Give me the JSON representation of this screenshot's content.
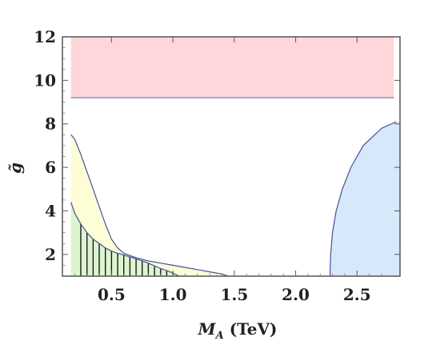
{
  "chart_data": {
    "type": "area",
    "title": "",
    "xlabel": "M_A (TeV)",
    "xlabel_main": "M",
    "xlabel_sub": "A",
    "xlabel_unit": " (TeV)",
    "ylabel": "g̃",
    "xlim": [
      0.1,
      2.85
    ],
    "ylim": [
      1,
      12
    ],
    "grid": false,
    "x_ticks": [
      {
        "value": 0.5,
        "label": "0.5"
      },
      {
        "value": 1.0,
        "label": "1.0"
      },
      {
        "value": 1.5,
        "label": "1.5"
      },
      {
        "value": 2.0,
        "label": "2.0"
      },
      {
        "value": 2.5,
        "label": "2.5"
      }
    ],
    "y_ticks": [
      {
        "value": 2,
        "label": "2"
      },
      {
        "value": 4,
        "label": "4"
      },
      {
        "value": 6,
        "label": "6"
      },
      {
        "value": 8,
        "label": "8"
      },
      {
        "value": 10,
        "label": "10"
      },
      {
        "value": 12,
        "label": "12"
      }
    ],
    "regions": [
      {
        "id": "pink",
        "fill": "#ffd6da",
        "boundary": [
          [
            0.17,
            9.2
          ],
          [
            2.8,
            9.2
          ]
        ],
        "fill_to": "top",
        "edge_color": "#7a7fbf"
      },
      {
        "id": "yellow",
        "fill": "#fdfdd6",
        "boundary": [
          [
            0.17,
            7.5
          ],
          [
            0.2,
            7.3
          ],
          [
            0.25,
            6.6
          ],
          [
            0.3,
            5.8
          ],
          [
            0.35,
            5.0
          ],
          [
            0.4,
            4.2
          ],
          [
            0.45,
            3.4
          ],
          [
            0.5,
            2.7
          ],
          [
            0.55,
            2.3
          ],
          [
            0.6,
            2.05
          ],
          [
            0.7,
            1.85
          ],
          [
            0.8,
            1.7
          ],
          [
            0.9,
            1.6
          ],
          [
            1.0,
            1.5
          ],
          [
            1.1,
            1.4
          ],
          [
            1.2,
            1.3
          ],
          [
            1.3,
            1.2
          ],
          [
            1.4,
            1.1
          ],
          [
            1.45,
            1.0
          ]
        ],
        "fill_to": "bottom",
        "edge_color": "#4a4f9a"
      },
      {
        "id": "green",
        "fill": "#dcf5d0",
        "boundary": [
          [
            0.17,
            4.4
          ],
          [
            0.2,
            3.9
          ],
          [
            0.25,
            3.4
          ],
          [
            0.3,
            3.0
          ],
          [
            0.35,
            2.7
          ],
          [
            0.4,
            2.5
          ],
          [
            0.45,
            2.3
          ],
          [
            0.5,
            2.15
          ],
          [
            0.55,
            2.05
          ],
          [
            0.6,
            1.97
          ],
          [
            0.7,
            1.8
          ],
          [
            0.8,
            1.6
          ],
          [
            0.9,
            1.35
          ],
          [
            1.0,
            1.15
          ],
          [
            1.05,
            1.0
          ]
        ],
        "fill_to": "bottom",
        "edge_color": "#4a4f9a",
        "hatch": "vertical"
      },
      {
        "id": "blue",
        "fill": "#d8e8fb",
        "boundary": [
          [
            2.28,
            1.0
          ],
          [
            2.285,
            2.0
          ],
          [
            2.3,
            3.0
          ],
          [
            2.33,
            4.0
          ],
          [
            2.38,
            5.0
          ],
          [
            2.45,
            6.0
          ],
          [
            2.55,
            7.0
          ],
          [
            2.7,
            7.8
          ],
          [
            2.82,
            8.1
          ]
        ],
        "fill_to": "right",
        "edge_color": "#4a4f9a"
      }
    ]
  }
}
